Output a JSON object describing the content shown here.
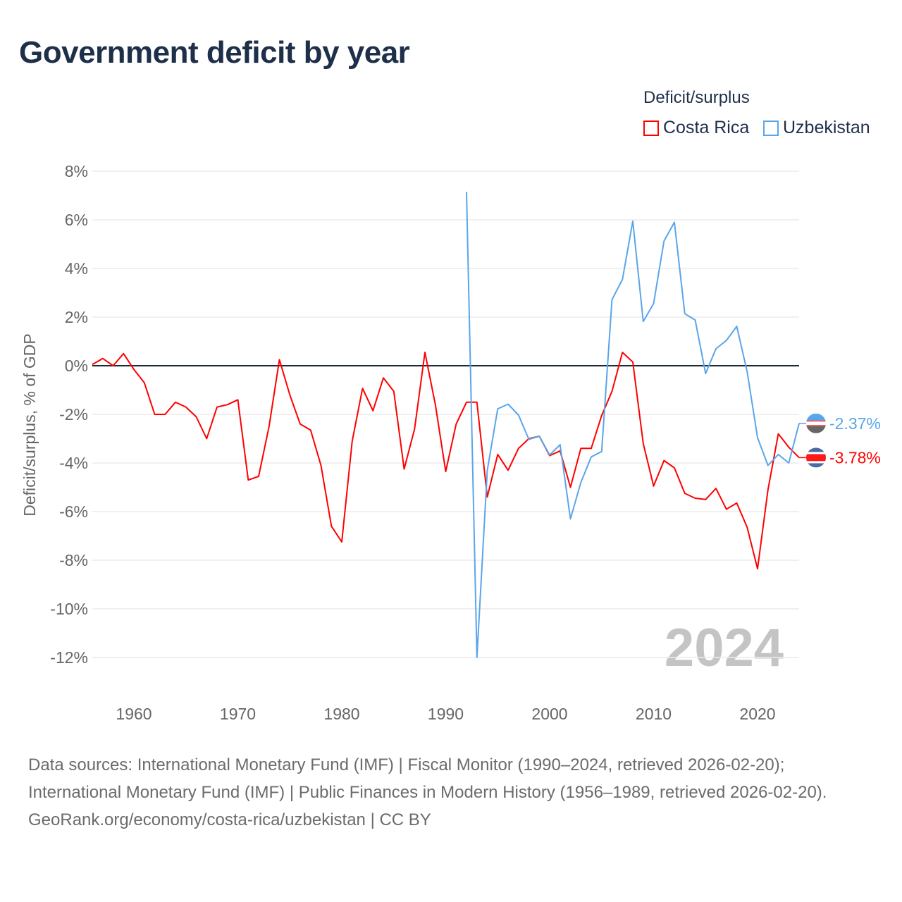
{
  "title": "Government deficit by year",
  "legend": {
    "title": "Deficit/surplus",
    "items": [
      {
        "label": "Costa Rica",
        "color": "#ff0000"
      },
      {
        "label": "Uzbekistan",
        "color": "#5aa5ea"
      }
    ]
  },
  "chart_data": {
    "type": "line",
    "title": "Government deficit by year",
    "xlabel": "",
    "ylabel": "Deficit/surplus, % of GDP",
    "xlim": [
      1956,
      2024
    ],
    "ylim": [
      -12,
      8
    ],
    "x_ticks": [
      1960,
      1970,
      1980,
      1990,
      2000,
      2010,
      2020
    ],
    "y_ticks": [
      8,
      6,
      4,
      2,
      0,
      -2,
      -4,
      -6,
      -8,
      -10,
      -12
    ],
    "y_tick_labels": [
      "8%",
      "6%",
      "4%",
      "2%",
      "0%",
      "-2%",
      "-4%",
      "-6%",
      "-8%",
      "-10%",
      "-12%"
    ],
    "grid": true,
    "legend_position": "top-right",
    "year_watermark": "2024",
    "series": [
      {
        "name": "Costa Rica",
        "color": "#ff0000",
        "end_label": "-3.78%",
        "start_year": 1956,
        "values": [
          0.05,
          0.3,
          0.0,
          0.5,
          -0.15,
          -0.7,
          -2.0,
          -2.0,
          -1.5,
          -1.7,
          -2.1,
          -3.0,
          -1.7,
          -1.6,
          -1.4,
          -4.7,
          -4.55,
          -2.5,
          0.25,
          -1.2,
          -2.4,
          -2.65,
          -4.1,
          -6.6,
          -7.25,
          -3.1,
          -0.93,
          -1.85,
          -0.5,
          -1.05,
          -4.25,
          -2.6,
          0.55,
          -1.6,
          -4.35,
          -2.4,
          -1.5,
          -1.5,
          -5.4,
          -3.65,
          -4.3,
          -3.4,
          -3.0,
          -2.9,
          -3.7,
          -3.5,
          -5.0,
          -3.4,
          -3.4,
          -2.05,
          -1.05,
          0.55,
          0.15,
          -3.2,
          -4.95,
          -3.9,
          -4.2,
          -5.25,
          -5.45,
          -5.5,
          -5.05,
          -5.9,
          -5.65,
          -6.65,
          -8.35,
          -5.1,
          -2.8,
          -3.35,
          -3.78
        ]
      },
      {
        "name": "Uzbekistan",
        "color": "#5aa5ea",
        "end_label": "-2.37%",
        "start_year": 1992,
        "values": [
          7.15,
          -12.0,
          -4.3,
          -1.77,
          -1.58,
          -2.03,
          -3.03,
          -2.9,
          -3.67,
          -3.25,
          -6.3,
          -4.8,
          -3.75,
          -3.53,
          2.72,
          3.55,
          5.95,
          1.82,
          2.56,
          5.13,
          5.9,
          2.14,
          1.88,
          -0.32,
          0.7,
          1.04,
          1.62,
          -0.25,
          -2.96,
          -4.1,
          -3.65,
          -4.0,
          -2.37
        ]
      }
    ]
  },
  "footer": {
    "sources": "Data sources: International Monetary Fund (IMF) | Fiscal Monitor (1990–2024, retrieved 2026-02-20); International Monetary Fund (IMF) | Public Finances in Modern History (1956–1989, retrieved 2026-02-20).",
    "credit": "GeoRank.org/economy/costa-rica/uzbekistan | CC BY"
  }
}
